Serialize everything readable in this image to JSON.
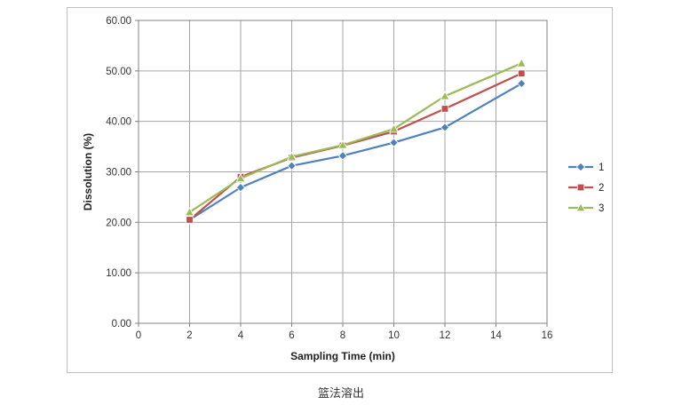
{
  "chart_data": {
    "type": "line",
    "x": [
      2,
      4,
      6,
      8,
      10,
      12,
      15
    ],
    "series": [
      {
        "name": "1",
        "color": "#4F81BD",
        "marker": "diamond",
        "values": [
          20.5,
          26.9,
          31.2,
          33.2,
          35.8,
          38.8,
          47.5
        ]
      },
      {
        "name": "2",
        "color": "#C0504D",
        "marker": "square",
        "values": [
          20.5,
          29.0,
          32.8,
          35.2,
          38.0,
          42.5,
          49.5
        ]
      },
      {
        "name": "3",
        "color": "#9BBB59",
        "marker": "triangle",
        "values": [
          22.0,
          28.7,
          33.0,
          35.3,
          38.5,
          45.0,
          51.5
        ]
      }
    ],
    "xlabel": "Sampling Time (min)",
    "ylabel": "Dissolution (%)",
    "xlim": [
      0,
      16
    ],
    "ylim": [
      0,
      60
    ],
    "xticks": [
      0,
      2,
      4,
      6,
      8,
      10,
      12,
      14,
      16
    ],
    "yticks": [
      0,
      10,
      20,
      30,
      40,
      50,
      60
    ],
    "grid": true,
    "grid_color": "#a6a6a6",
    "axis_color": "#808080",
    "text_color": "#333333",
    "legend_position": "right",
    "legend_labels": [
      "1",
      "2",
      "3"
    ],
    "caption": "篮法溶出"
  }
}
